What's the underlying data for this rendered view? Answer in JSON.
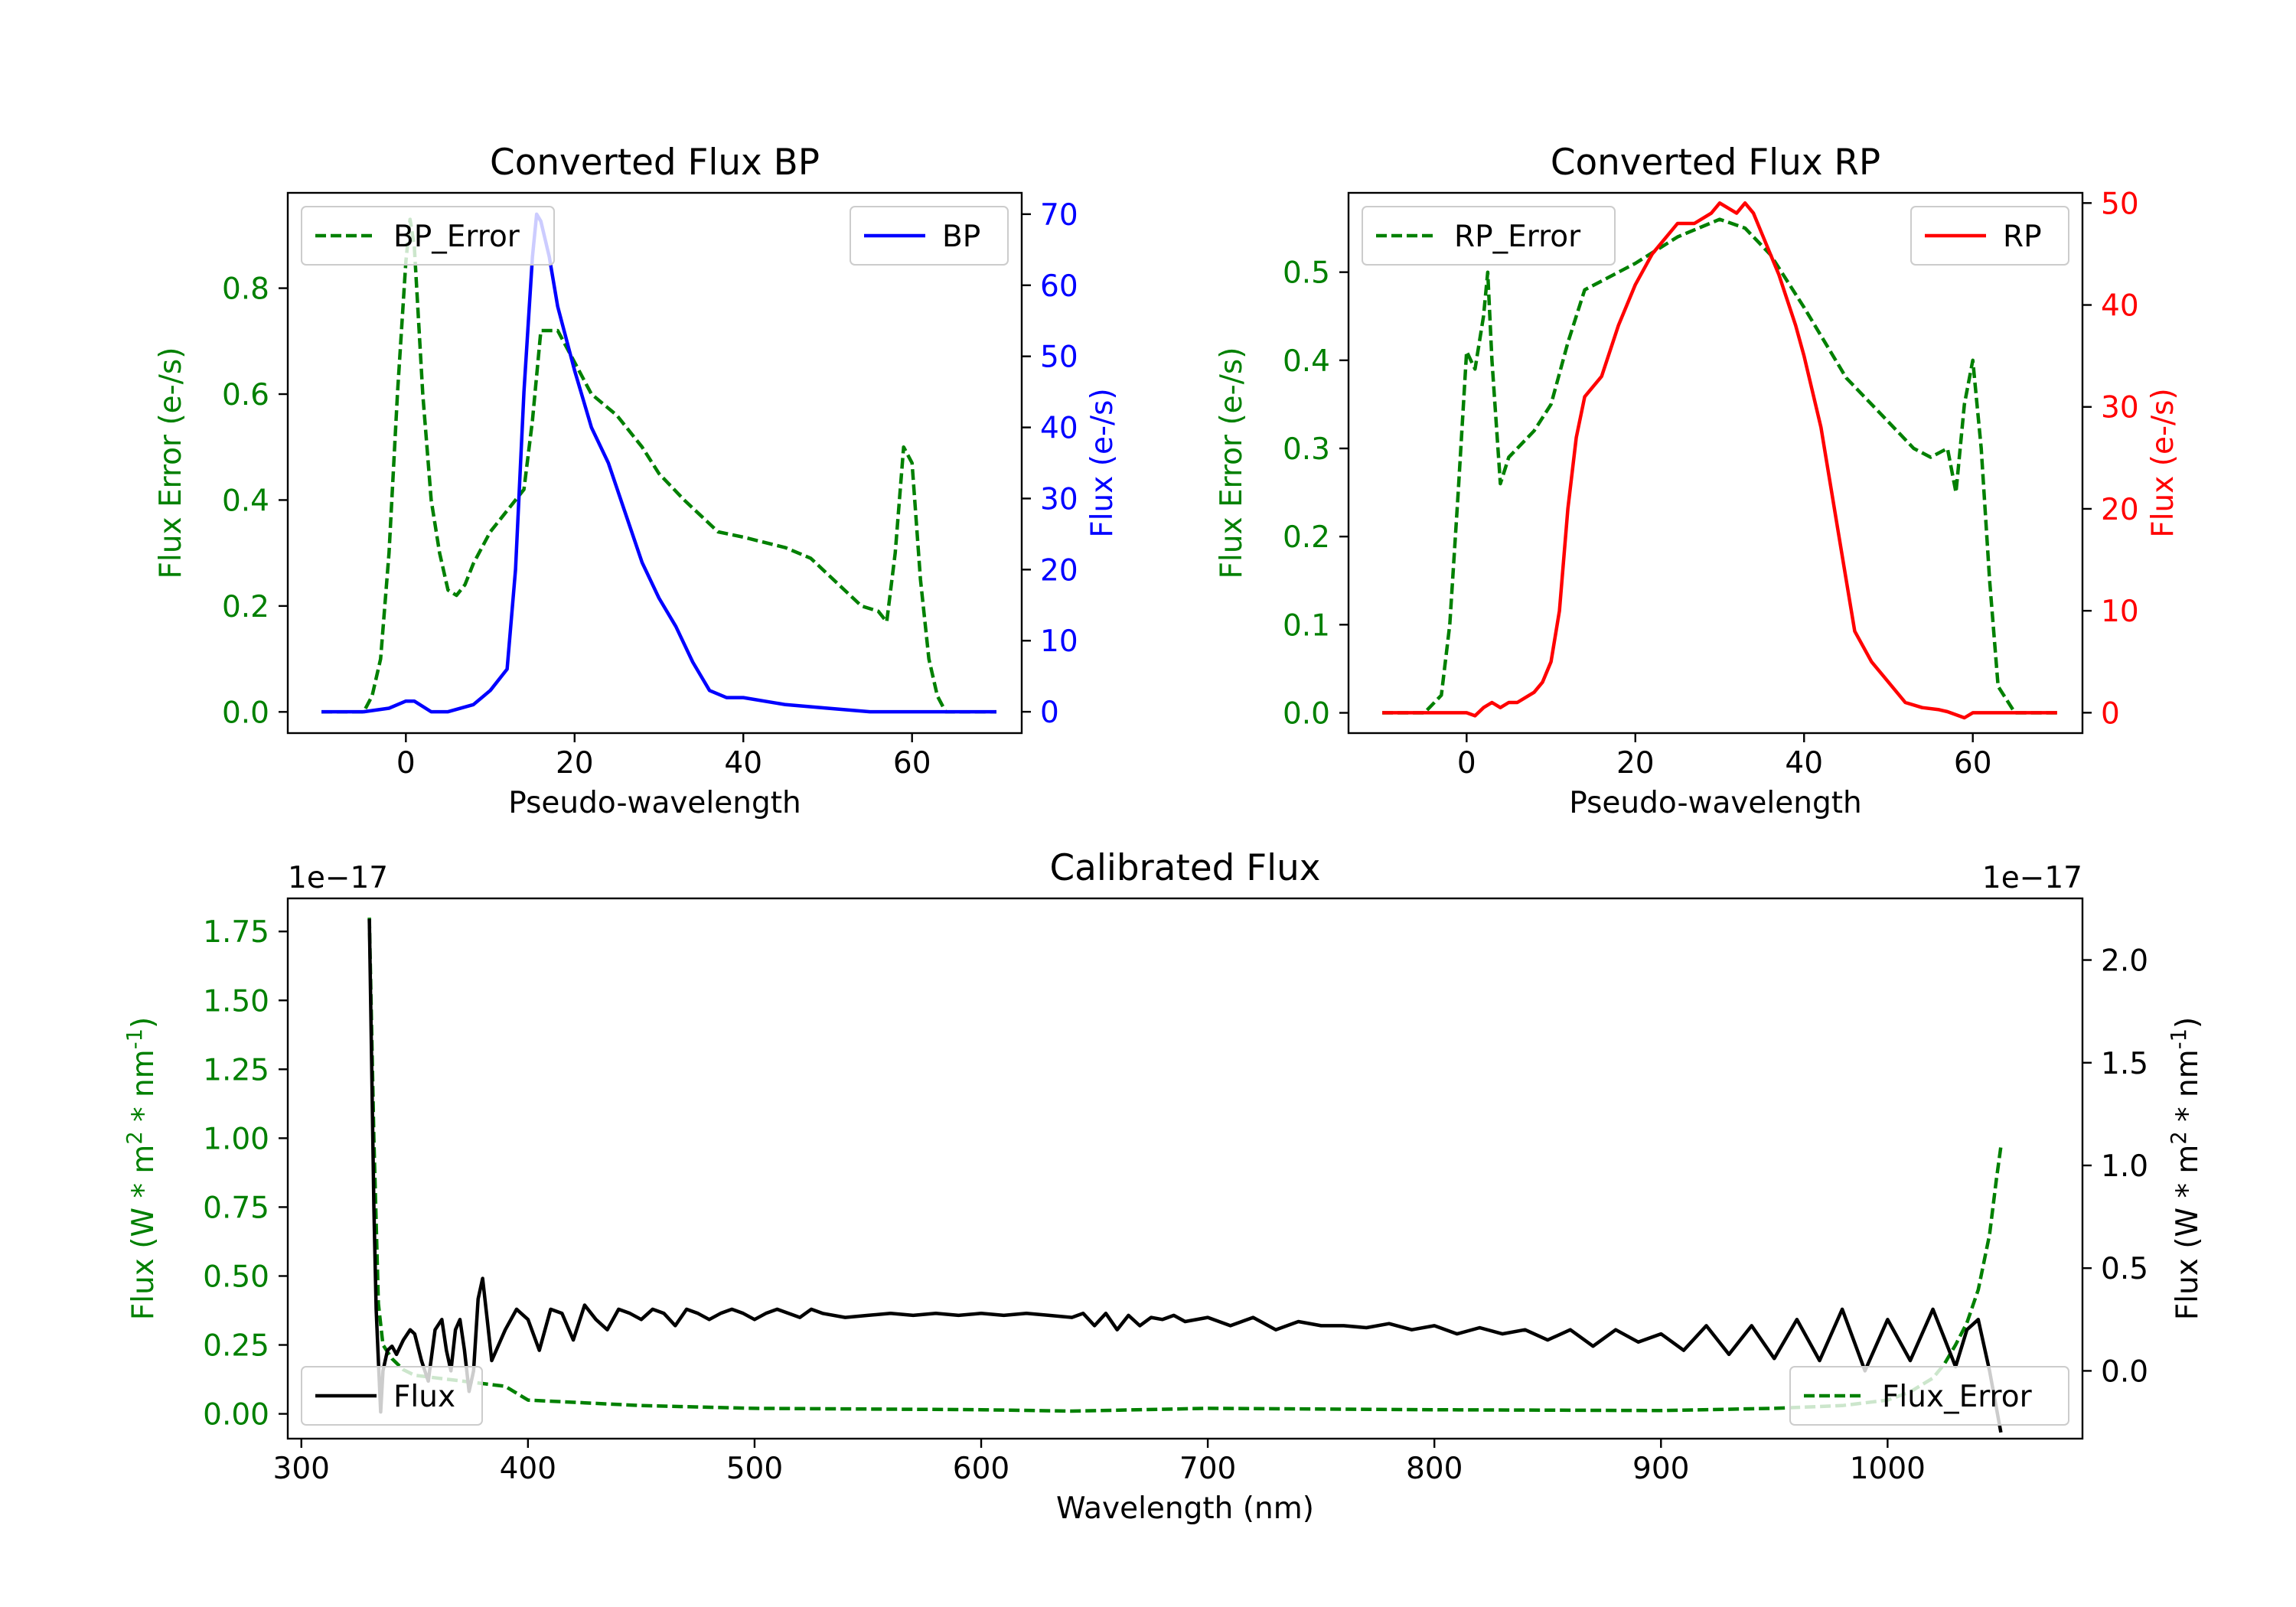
{
  "colors": {
    "green": "#008000",
    "blue": "#0000ff",
    "red": "#ff0000",
    "black": "#000000"
  },
  "chart_data": [
    {
      "type": "line",
      "title": "Converted Flux BP",
      "xlabel": "Pseudo-wavelength",
      "ylabel_left": "Flux Error (e-/s)",
      "ylabel_right": "Flux (e-/s)",
      "xlim": [
        -14,
        73
      ],
      "ylim_left": [
        -0.04,
        0.98
      ],
      "ylim_right": [
        -3,
        73
      ],
      "xticks": [
        0,
        20,
        40,
        60
      ],
      "xtick_labels": [
        "0",
        "20",
        "40",
        "60"
      ],
      "yticks_left": [
        0.0,
        0.2,
        0.4,
        0.6,
        0.8
      ],
      "ytick_labels_left": [
        "0.0",
        "0.2",
        "0.4",
        "0.6",
        "0.8"
      ],
      "yticks_right": [
        0,
        10,
        20,
        30,
        40,
        50,
        60,
        70
      ],
      "ytick_labels_right": [
        "0",
        "10",
        "20",
        "30",
        "40",
        "50",
        "60",
        "70"
      ],
      "legend_left": {
        "label": "BP_Error",
        "placement": "upper-left"
      },
      "legend_right": {
        "label": "BP",
        "placement": "upper-right"
      },
      "series": [
        {
          "name": "BP_Error",
          "axis": "left",
          "style": "dashed",
          "color": "#008000",
          "x": [
            -10,
            -5,
            -4,
            -3,
            -2,
            -1,
            0,
            0.5,
            1,
            2,
            3,
            4,
            5,
            6,
            7,
            8,
            10,
            12,
            14,
            15,
            16,
            18,
            20,
            22,
            25,
            28,
            30,
            33,
            35,
            37,
            40,
            45,
            48,
            50,
            52,
            54,
            56,
            57,
            58,
            59,
            60,
            61,
            62,
            63,
            64,
            65,
            70
          ],
          "y": [
            0.0,
            0.0,
            0.03,
            0.1,
            0.3,
            0.6,
            0.85,
            0.93,
            0.88,
            0.6,
            0.4,
            0.3,
            0.23,
            0.22,
            0.24,
            0.28,
            0.34,
            0.38,
            0.42,
            0.55,
            0.72,
            0.72,
            0.66,
            0.6,
            0.56,
            0.5,
            0.45,
            0.4,
            0.37,
            0.34,
            0.33,
            0.31,
            0.29,
            0.26,
            0.23,
            0.2,
            0.19,
            0.17,
            0.3,
            0.5,
            0.47,
            0.25,
            0.1,
            0.03,
            0.0,
            0.0,
            0.0
          ]
        },
        {
          "name": "BP",
          "axis": "right",
          "style": "solid",
          "color": "#0000ff",
          "x": [
            -10,
            -5,
            -2,
            0,
            1,
            3,
            5,
            8,
            10,
            12,
            13,
            14,
            15,
            15.5,
            16,
            17,
            18,
            20,
            22,
            24,
            26,
            28,
            30,
            32,
            34,
            36,
            38,
            40,
            45,
            50,
            55,
            60,
            65,
            70
          ],
          "y": [
            0,
            0,
            0.5,
            1.5,
            1.5,
            0,
            0,
            1,
            3,
            6,
            20,
            45,
            64,
            70,
            69,
            64,
            57,
            48,
            40,
            35,
            28,
            21,
            16,
            12,
            7,
            3,
            2,
            2,
            1,
            0.5,
            0,
            0,
            0,
            0
          ]
        }
      ]
    },
    {
      "type": "line",
      "title": "Converted Flux RP",
      "xlabel": "Pseudo-wavelength",
      "ylabel_left": "Flux Error (e-/s)",
      "ylabel_right": "Flux (e-/s)",
      "xlim": [
        -14,
        73
      ],
      "ylim_left": [
        -0.023,
        0.59
      ],
      "ylim_right": [
        -2,
        51
      ],
      "xticks": [
        0,
        20,
        40,
        60
      ],
      "xtick_labels": [
        "0",
        "20",
        "40",
        "60"
      ],
      "yticks_left": [
        0.0,
        0.1,
        0.2,
        0.3,
        0.4,
        0.5
      ],
      "ytick_labels_left": [
        "0.0",
        "0.1",
        "0.2",
        "0.3",
        "0.4",
        "0.5"
      ],
      "yticks_right": [
        0,
        10,
        20,
        30,
        40,
        50
      ],
      "ytick_labels_right": [
        "0",
        "10",
        "20",
        "30",
        "40",
        "50"
      ],
      "legend_left": {
        "label": "RP_Error",
        "placement": "upper-left"
      },
      "legend_right": {
        "label": "RP",
        "placement": "upper-right"
      },
      "series": [
        {
          "name": "RP_Error",
          "axis": "left",
          "style": "dashed",
          "color": "#008000",
          "x": [
            -10,
            -5,
            -3,
            -2,
            -1,
            0,
            1,
            2,
            2.5,
            3,
            4,
            5,
            6,
            8,
            10,
            12,
            14,
            16,
            20,
            25,
            30,
            33,
            36,
            40,
            45,
            50,
            53,
            55,
            57,
            58,
            59,
            60,
            61,
            62,
            63,
            65,
            70
          ],
          "y": [
            0.0,
            0.0,
            0.02,
            0.1,
            0.25,
            0.41,
            0.39,
            0.45,
            0.5,
            0.4,
            0.26,
            0.29,
            0.3,
            0.32,
            0.35,
            0.42,
            0.48,
            0.49,
            0.51,
            0.54,
            0.56,
            0.55,
            0.52,
            0.46,
            0.38,
            0.33,
            0.3,
            0.29,
            0.3,
            0.25,
            0.35,
            0.4,
            0.3,
            0.15,
            0.03,
            0.0,
            0.0
          ]
        },
        {
          "name": "RP",
          "axis": "right",
          "style": "solid",
          "color": "#ff0000",
          "x": [
            -10,
            -5,
            0,
            1,
            2,
            3,
            4,
            5,
            6,
            8,
            9,
            10,
            11,
            12,
            13,
            14,
            16,
            18,
            20,
            22,
            25,
            27,
            29,
            30,
            32,
            33,
            34,
            35,
            37,
            39,
            40,
            42,
            44,
            46,
            48,
            50,
            52,
            54,
            56,
            57,
            59,
            60,
            62,
            65,
            70
          ],
          "y": [
            0,
            0,
            0,
            -0.3,
            0.5,
            1,
            0.5,
            1,
            1,
            2,
            3,
            5,
            10,
            20,
            27,
            31,
            33,
            38,
            42,
            45,
            48,
            48,
            49,
            50,
            49,
            50,
            49,
            47,
            43,
            38,
            35,
            28,
            18,
            8,
            5,
            3,
            1,
            0.5,
            0.3,
            0.1,
            -0.5,
            0,
            0,
            0,
            0
          ]
        }
      ]
    },
    {
      "type": "line",
      "title": "Calibrated Flux",
      "xlabel": "Wavelength (nm)",
      "ylabel_left": "Flux (W * m$^{2}$ * nm$^{-1}$)",
      "ylabel_right": "Flux (W * m$^{2}$ * nm$^{-1}$)",
      "offset_left": "1e−17",
      "offset_right": "1e−17",
      "xlim": [
        294,
        1086
      ],
      "ylim_left": [
        -0.09,
        1.87
      ],
      "ylim_right": [
        -0.33,
        2.3
      ],
      "xticks": [
        300,
        400,
        500,
        600,
        700,
        800,
        900,
        1000
      ],
      "xtick_labels": [
        "300",
        "400",
        "500",
        "600",
        "700",
        "800",
        "900",
        "1000"
      ],
      "yticks_left": [
        0.0,
        0.25,
        0.5,
        0.75,
        1.0,
        1.25,
        1.5,
        1.75
      ],
      "ytick_labels_left": [
        "0.00",
        "0.25",
        "0.50",
        "0.75",
        "1.00",
        "1.25",
        "1.50",
        "1.75"
      ],
      "yticks_right": [
        0.0,
        0.5,
        1.0,
        1.5,
        2.0
      ],
      "ytick_labels_right": [
        "0.0",
        "0.5",
        "1.0",
        "1.5",
        "2.0"
      ],
      "legend_left": {
        "label": "Flux",
        "placement": "lower-left"
      },
      "legend_right": {
        "label": "Flux_Error",
        "placement": "lower-right"
      },
      "series": [
        {
          "name": "Flux_Error",
          "axis": "left",
          "style": "dashed",
          "color": "#008000",
          "x": [
            330,
            332,
            334,
            336,
            340,
            345,
            350,
            360,
            370,
            380,
            390,
            400,
            450,
            500,
            600,
            640,
            700,
            800,
            900,
            950,
            980,
            1000,
            1010,
            1020,
            1025,
            1030,
            1035,
            1040,
            1045,
            1048,
            1050
          ],
          "y": [
            1.8,
            1.0,
            0.4,
            0.25,
            0.2,
            0.16,
            0.14,
            0.13,
            0.12,
            0.11,
            0.1,
            0.05,
            0.03,
            0.02,
            0.015,
            0.01,
            0.02,
            0.015,
            0.012,
            0.02,
            0.03,
            0.05,
            0.08,
            0.13,
            0.18,
            0.25,
            0.33,
            0.45,
            0.65,
            0.85,
            0.97
          ]
        },
        {
          "name": "Flux",
          "axis": "right",
          "style": "solid",
          "color": "#000000",
          "x": [
            330,
            331,
            332,
            333,
            334,
            335,
            336,
            338,
            340,
            342,
            345,
            348,
            350,
            353,
            356,
            359,
            362,
            364,
            366,
            368,
            370,
            372,
            374,
            376,
            378,
            380,
            382,
            384,
            386,
            388,
            390,
            395,
            400,
            405,
            410,
            415,
            420,
            425,
            430,
            435,
            440,
            445,
            450,
            455,
            460,
            465,
            470,
            475,
            480,
            485,
            490,
            495,
            500,
            505,
            510,
            515,
            520,
            525,
            530,
            540,
            550,
            560,
            570,
            580,
            590,
            600,
            610,
            620,
            630,
            640,
            645,
            650,
            655,
            660,
            665,
            670,
            675,
            680,
            685,
            690,
            700,
            710,
            720,
            730,
            740,
            750,
            760,
            770,
            780,
            790,
            800,
            810,
            820,
            830,
            840,
            850,
            860,
            870,
            880,
            890,
            900,
            910,
            920,
            930,
            940,
            950,
            960,
            970,
            980,
            990,
            1000,
            1010,
            1020,
            1030,
            1035,
            1040,
            1045,
            1050
          ],
          "y": [
            2.2,
            1.5,
            0.8,
            0.3,
            0.05,
            -0.2,
            0.0,
            0.1,
            0.12,
            0.08,
            0.15,
            0.2,
            0.18,
            0.05,
            -0.05,
            0.2,
            0.25,
            0.1,
            0.0,
            0.2,
            0.25,
            0.1,
            -0.1,
            0.0,
            0.35,
            0.45,
            0.25,
            0.05,
            0.1,
            0.15,
            0.2,
            0.3,
            0.25,
            0.1,
            0.3,
            0.28,
            0.15,
            0.32,
            0.25,
            0.2,
            0.3,
            0.28,
            0.25,
            0.3,
            0.28,
            0.22,
            0.3,
            0.28,
            0.25,
            0.28,
            0.3,
            0.28,
            0.25,
            0.28,
            0.3,
            0.28,
            0.26,
            0.3,
            0.28,
            0.26,
            0.27,
            0.28,
            0.27,
            0.28,
            0.27,
            0.28,
            0.27,
            0.28,
            0.27,
            0.26,
            0.28,
            0.22,
            0.28,
            0.2,
            0.27,
            0.22,
            0.26,
            0.25,
            0.27,
            0.24,
            0.26,
            0.22,
            0.26,
            0.2,
            0.24,
            0.22,
            0.22,
            0.21,
            0.23,
            0.2,
            0.22,
            0.18,
            0.21,
            0.18,
            0.2,
            0.15,
            0.2,
            0.12,
            0.2,
            0.14,
            0.18,
            0.1,
            0.22,
            0.08,
            0.22,
            0.06,
            0.25,
            0.05,
            0.3,
            0.0,
            0.25,
            0.05,
            0.3,
            0.02,
            0.2,
            0.25,
            0.0,
            -0.3
          ]
        }
      ]
    }
  ]
}
